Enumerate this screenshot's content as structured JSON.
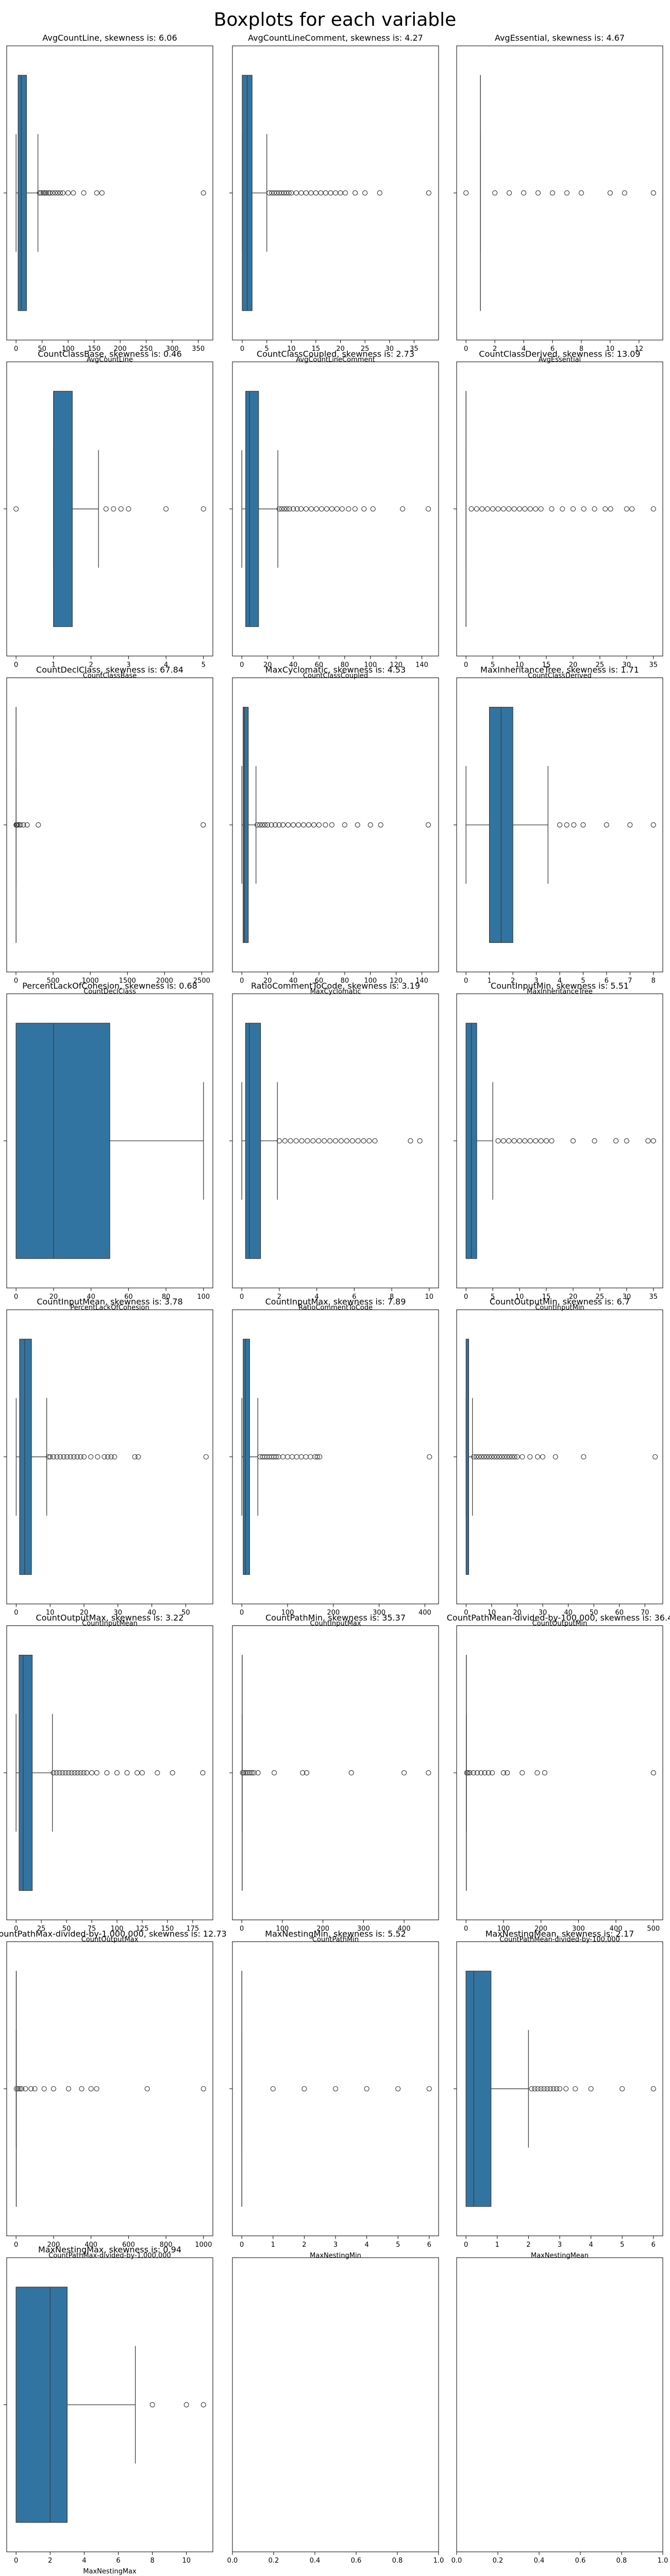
{
  "title": "Boxplots for each variable",
  "chart_data": [
    {
      "type": "box",
      "title": "AvgCountLine, skewness is: 6.06",
      "xlabel": "AvgCountLine",
      "color": "#3274a1",
      "xlim": [
        -18,
        378
      ],
      "xticks": [
        0,
        50,
        100,
        150,
        200,
        250,
        300,
        350
      ],
      "box": {
        "whislo": 0,
        "q1": 4,
        "med": 10,
        "q3": 20,
        "whishi": 42,
        "fliers": [
          45,
          48,
          52,
          55,
          58,
          62,
          65,
          70,
          75,
          80,
          85,
          90,
          100,
          110,
          130,
          155,
          165,
          360
        ]
      }
    },
    {
      "type": "box",
      "title": "AvgCountLineComment, skewness is: 4.27",
      "xlabel": "AvgCountLineComment",
      "color": "#3274a1",
      "xlim": [
        -2,
        40
      ],
      "xticks": [
        0,
        5,
        10,
        15,
        20,
        25,
        30,
        35
      ],
      "box": {
        "whislo": 0,
        "q1": 0,
        "med": 1,
        "q3": 2,
        "whishi": 5,
        "fliers": [
          5.5,
          6,
          6.5,
          7,
          7.5,
          8,
          8.5,
          9,
          9.5,
          10,
          11,
          12,
          13,
          14,
          15,
          16,
          17,
          18,
          19,
          20,
          21,
          23,
          25,
          28,
          38
        ]
      }
    },
    {
      "type": "box",
      "title": "AvgEssential, skewness is: 4.67",
      "xlabel": "AvgEssential",
      "color": "#3274a1",
      "xlim": [
        -0.65,
        13.65
      ],
      "xticks": [
        0,
        2,
        4,
        6,
        8,
        10,
        12
      ],
      "box": {
        "whislo": 1,
        "q1": 1,
        "med": 1,
        "q3": 1,
        "whishi": 1,
        "fliers": [
          0,
          2,
          3,
          4,
          5,
          6,
          7,
          8,
          10,
          11,
          13
        ]
      }
    },
    {
      "type": "box",
      "title": "CountClassBase, skewness is: 0.46",
      "xlabel": "CountClassBase",
      "color": "#3274a1",
      "xlim": [
        -0.25,
        5.25
      ],
      "xticks": [
        0,
        1,
        2,
        3,
        4,
        5
      ],
      "box": {
        "whislo": 1,
        "q1": 1,
        "med": 1,
        "q3": 1.5,
        "whishi": 2.2,
        "fliers": [
          0,
          2.4,
          2.6,
          2.8,
          3,
          4,
          5
        ]
      }
    },
    {
      "type": "box",
      "title": "CountClassCoupled, skewness is: 2.73",
      "xlabel": "CountClassCoupled",
      "color": "#3274a1",
      "xlim": [
        -7.3,
        153
      ],
      "xticks": [
        0,
        20,
        40,
        60,
        80,
        100,
        120,
        140
      ],
      "box": {
        "whislo": 0,
        "q1": 3,
        "med": 6,
        "q3": 13,
        "whishi": 28,
        "fliers": [
          29,
          31,
          33,
          35,
          37,
          40,
          43,
          46,
          50,
          54,
          58,
          62,
          66,
          70,
          74,
          78,
          83,
          88,
          95,
          102,
          125,
          145
        ]
      }
    },
    {
      "type": "box",
      "title": "CountClassDerived, skewness is: 13.09",
      "xlabel": "CountClassDerived",
      "color": "#3274a1",
      "xlim": [
        -1.75,
        36.75
      ],
      "xticks": [
        0,
        5,
        10,
        15,
        20,
        25,
        30,
        35
      ],
      "box": {
        "whislo": 0,
        "q1": 0,
        "med": 0,
        "q3": 0,
        "whishi": 0,
        "fliers": [
          1,
          2,
          3,
          4,
          5,
          6,
          7,
          8,
          9,
          10,
          11,
          12,
          13,
          14,
          16,
          18,
          20,
          22,
          24,
          26,
          27,
          30,
          31,
          35
        ]
      }
    },
    {
      "type": "box",
      "title": "CountDeclClass, skewness is: 67.84",
      "xlabel": "CountDeclClass",
      "color": "#3274a1",
      "xlim": [
        -125,
        2650
      ],
      "xticks": [
        0,
        500,
        1000,
        1500,
        2000,
        2500
      ],
      "box": {
        "whislo": 1,
        "q1": 1,
        "med": 1,
        "q3": 1,
        "whishi": 1,
        "fliers": [
          2,
          5,
          10,
          20,
          40,
          60,
          100,
          150,
          300,
          2520
        ]
      }
    },
    {
      "type": "box",
      "title": "MaxCyclomatic, skewness is: 4.53",
      "xlabel": "MaxCyclomatic",
      "color": "#3274a1",
      "xlim": [
        -7.3,
        153
      ],
      "xticks": [
        0,
        20,
        40,
        60,
        80,
        100,
        120,
        140
      ],
      "box": {
        "whislo": 0,
        "q1": 1,
        "med": 2,
        "q3": 5,
        "whishi": 11,
        "fliers": [
          12,
          14,
          16,
          18,
          20,
          23,
          26,
          29,
          32,
          36,
          40,
          44,
          48,
          52,
          56,
          60,
          65,
          70,
          80,
          90,
          100,
          108,
          145
        ]
      }
    },
    {
      "type": "box",
      "title": "MaxInheritanceTree, skewness is: 1.71",
      "xlabel": "MaxInheritanceTree",
      "color": "#3274a1",
      "xlim": [
        -0.4,
        8.4
      ],
      "xticks": [
        0,
        1,
        2,
        3,
        4,
        5,
        6,
        7,
        8
      ],
      "box": {
        "whislo": 0,
        "q1": 1,
        "med": 1.5,
        "q3": 2,
        "whishi": 3.5,
        "fliers": [
          4,
          4.3,
          4.6,
          5,
          6,
          7,
          8
        ]
      }
    },
    {
      "type": "box",
      "title": "PercentLackOfCohesion, skewness is: 0.68",
      "xlabel": "PercentLackOfCohesion",
      "color": "#3274a1",
      "xlim": [
        -5,
        105
      ],
      "xticks": [
        0,
        20,
        40,
        60,
        80,
        100
      ],
      "box": {
        "whislo": 0,
        "q1": 0,
        "med": 20,
        "q3": 50,
        "whishi": 100,
        "fliers": []
      }
    },
    {
      "type": "box",
      "title": "RatioCommentToCode, skewness is: 3.19",
      "xlabel": "RatioCommentToCode",
      "color": "#3274a1",
      "xlim": [
        -0.5,
        10.5
      ],
      "xticks": [
        0,
        2,
        4,
        6,
        8,
        10
      ],
      "box": {
        "whislo": 0,
        "q1": 0.2,
        "med": 0.4,
        "q3": 1,
        "whishi": 1.9,
        "fliers": [
          2,
          2.3,
          2.6,
          2.9,
          3.2,
          3.5,
          3.8,
          4.1,
          4.4,
          4.7,
          5,
          5.3,
          5.6,
          5.9,
          6.2,
          6.5,
          6.8,
          7.1,
          9,
          9.5
        ]
      }
    },
    {
      "type": "box",
      "title": "CountInputMin, skewness is: 5.51",
      "xlabel": "CountInputMin",
      "color": "#3274a1",
      "xlim": [
        -1.75,
        36.75
      ],
      "xticks": [
        0,
        5,
        10,
        15,
        20,
        25,
        30,
        35
      ],
      "box": {
        "whislo": 0,
        "q1": 0,
        "med": 1,
        "q3": 2,
        "whishi": 5,
        "fliers": [
          6,
          7,
          8,
          9,
          10,
          11,
          12,
          13,
          14,
          15,
          16,
          20,
          24,
          28,
          30,
          34,
          35
        ]
      }
    },
    {
      "type": "box",
      "title": "CountInputMean, skewness is: 3.78",
      "xlabel": "CountInputMean",
      "color": "#3274a1",
      "xlim": [
        -2.8,
        58
      ],
      "xticks": [
        0,
        10,
        20,
        30,
        40,
        50
      ],
      "box": {
        "whislo": 0,
        "q1": 1,
        "med": 2.5,
        "q3": 4.5,
        "whishi": 9,
        "fliers": [
          9.5,
          10,
          11,
          12,
          13,
          14,
          15,
          16,
          17,
          18,
          19,
          20,
          22,
          24,
          26,
          27,
          28,
          29,
          35,
          36,
          56
        ]
      }
    },
    {
      "type": "box",
      "title": "CountInputMax, skewness is: 7.89",
      "xlabel": "CountInputMax",
      "color": "#3274a1",
      "xlim": [
        -20.5,
        430
      ],
      "xticks": [
        0,
        100,
        200,
        300,
        400
      ],
      "box": {
        "whislo": 0,
        "q1": 3,
        "med": 8,
        "q3": 17,
        "whishi": 35,
        "fliers": [
          40,
          45,
          50,
          55,
          60,
          65,
          70,
          75,
          80,
          90,
          100,
          110,
          120,
          130,
          140,
          150,
          160,
          165,
          170,
          410
        ]
      }
    },
    {
      "type": "box",
      "title": "CountOutputMin, skewness is: 6.7",
      "xlabel": "CountOutputMin",
      "color": "#3274a1",
      "xlim": [
        -3.7,
        77
      ],
      "xticks": [
        0,
        10,
        20,
        30,
        40,
        50,
        60,
        70
      ],
      "box": {
        "whislo": 0,
        "q1": 0,
        "med": 1,
        "q3": 1,
        "whishi": 2.5,
        "fliers": [
          3,
          4,
          5,
          6,
          7,
          8,
          9,
          10,
          11,
          12,
          13,
          14,
          15,
          16,
          17,
          18,
          19,
          20,
          22,
          25,
          28,
          30,
          35,
          46,
          74
        ]
      }
    },
    {
      "type": "box",
      "title": "CountOutputMax, skewness is: 3.22",
      "xlabel": "CountOutputMax",
      "color": "#3274a1",
      "xlim": [
        -9.3,
        195
      ],
      "xticks": [
        0,
        25,
        50,
        75,
        100,
        125,
        150,
        175
      ],
      "box": {
        "whislo": 0,
        "q1": 3,
        "med": 7,
        "q3": 16,
        "whishi": 36,
        "fliers": [
          37,
          40,
          43,
          46,
          49,
          52,
          55,
          58,
          61,
          64,
          67,
          70,
          75,
          80,
          90,
          100,
          110,
          120,
          125,
          140,
          155,
          185
        ]
      }
    },
    {
      "type": "box",
      "title": "CountPathMin, skewness is: 35.37",
      "xlabel": "CountPathMin",
      "color": "#3274a1",
      "xlim": [
        -23,
        485
      ],
      "xticks": [
        0,
        100,
        200,
        300,
        400
      ],
      "box": {
        "whislo": 1,
        "q1": 1,
        "med": 1,
        "q3": 1,
        "whishi": 1,
        "fliers": [
          2,
          5,
          10,
          15,
          20,
          25,
          30,
          40,
          80,
          150,
          160,
          270,
          400,
          460
        ]
      }
    },
    {
      "type": "box",
      "title": "CountPathMean-divided-by-100,000, skewness is: 36.4",
      "xlabel": "CountPathMean-divided-by-100,000",
      "color": "#3274a1",
      "xlim": [
        -25,
        525
      ],
      "xticks": [
        0,
        100,
        200,
        300,
        400,
        500
      ],
      "box": {
        "whislo": 1,
        "q1": 1,
        "med": 1,
        "q3": 1,
        "whishi": 1,
        "fliers": [
          2,
          5,
          10,
          20,
          30,
          40,
          50,
          60,
          70,
          100,
          110,
          150,
          190,
          210,
          500
        ]
      }
    },
    {
      "type": "box",
      "title": "CountPathMax-divided-by-1,000,000, skewness is: 12.73",
      "xlabel": "CountPathMax-divided-by-1,000,000",
      "color": "#3274a1",
      "xlim": [
        -50,
        1050
      ],
      "xticks": [
        0,
        200,
        400,
        600,
        800,
        1000
      ],
      "box": {
        "whislo": 1,
        "q1": 1,
        "med": 1,
        "q3": 1,
        "whishi": 1,
        "fliers": [
          2,
          10,
          20,
          30,
          50,
          80,
          100,
          150,
          200,
          280,
          350,
          400,
          430,
          700,
          1000
        ]
      }
    },
    {
      "type": "box",
      "title": "MaxNestingMin, skewness is: 5.52",
      "xlabel": "MaxNestingMin",
      "color": "#3274a1",
      "xlim": [
        -0.3,
        6.3
      ],
      "xticks": [
        0,
        1,
        2,
        3,
        4,
        5,
        6
      ],
      "box": {
        "whislo": 0,
        "q1": 0,
        "med": 0,
        "q3": 0,
        "whishi": 0,
        "fliers": [
          1,
          2,
          3,
          4,
          5,
          6
        ]
      }
    },
    {
      "type": "box",
      "title": "MaxNestingMean, skewness is: 2.17",
      "xlabel": "MaxNestingMean",
      "color": "#3274a1",
      "xlim": [
        -0.3,
        6.3
      ],
      "xticks": [
        0,
        1,
        2,
        3,
        4,
        5,
        6
      ],
      "box": {
        "whislo": 0,
        "q1": 0,
        "med": 0.25,
        "q3": 0.8,
        "whishi": 2,
        "fliers": [
          2.1,
          2.2,
          2.3,
          2.4,
          2.5,
          2.6,
          2.7,
          2.8,
          2.9,
          3,
          3.2,
          3.5,
          4,
          5,
          6
        ]
      }
    },
    {
      "type": "box",
      "title": "MaxNestingMax, skewness is: 0.94",
      "xlabel": "MaxNestingMax",
      "color": "#3274a1",
      "xlim": [
        -0.55,
        11.55
      ],
      "xticks": [
        0,
        2,
        4,
        6,
        8,
        10
      ],
      "box": {
        "whislo": 0,
        "q1": 0,
        "med": 2,
        "q3": 3,
        "whishi": 7,
        "fliers": [
          8,
          10,
          11
        ]
      }
    },
    {
      "type": "empty",
      "xlim": [
        0,
        1
      ],
      "xticks": [
        {
          "value": 0,
          "label": "0.0"
        },
        {
          "value": 0.2,
          "label": "0.2"
        },
        {
          "value": 0.4,
          "label": "0.4"
        },
        {
          "value": 0.6,
          "label": "0.6"
        },
        {
          "value": 0.8,
          "label": "0.8"
        },
        {
          "value": 1,
          "label": "1.0"
        }
      ]
    },
    {
      "type": "empty",
      "xlim": [
        0,
        1
      ],
      "xticks": [
        {
          "value": 0,
          "label": "0.0"
        },
        {
          "value": 0.2,
          "label": "0.2"
        },
        {
          "value": 0.4,
          "label": "0.4"
        },
        {
          "value": 0.6,
          "label": "0.6"
        },
        {
          "value": 0.8,
          "label": "0.8"
        },
        {
          "value": 1,
          "label": "1.0"
        }
      ]
    }
  ]
}
